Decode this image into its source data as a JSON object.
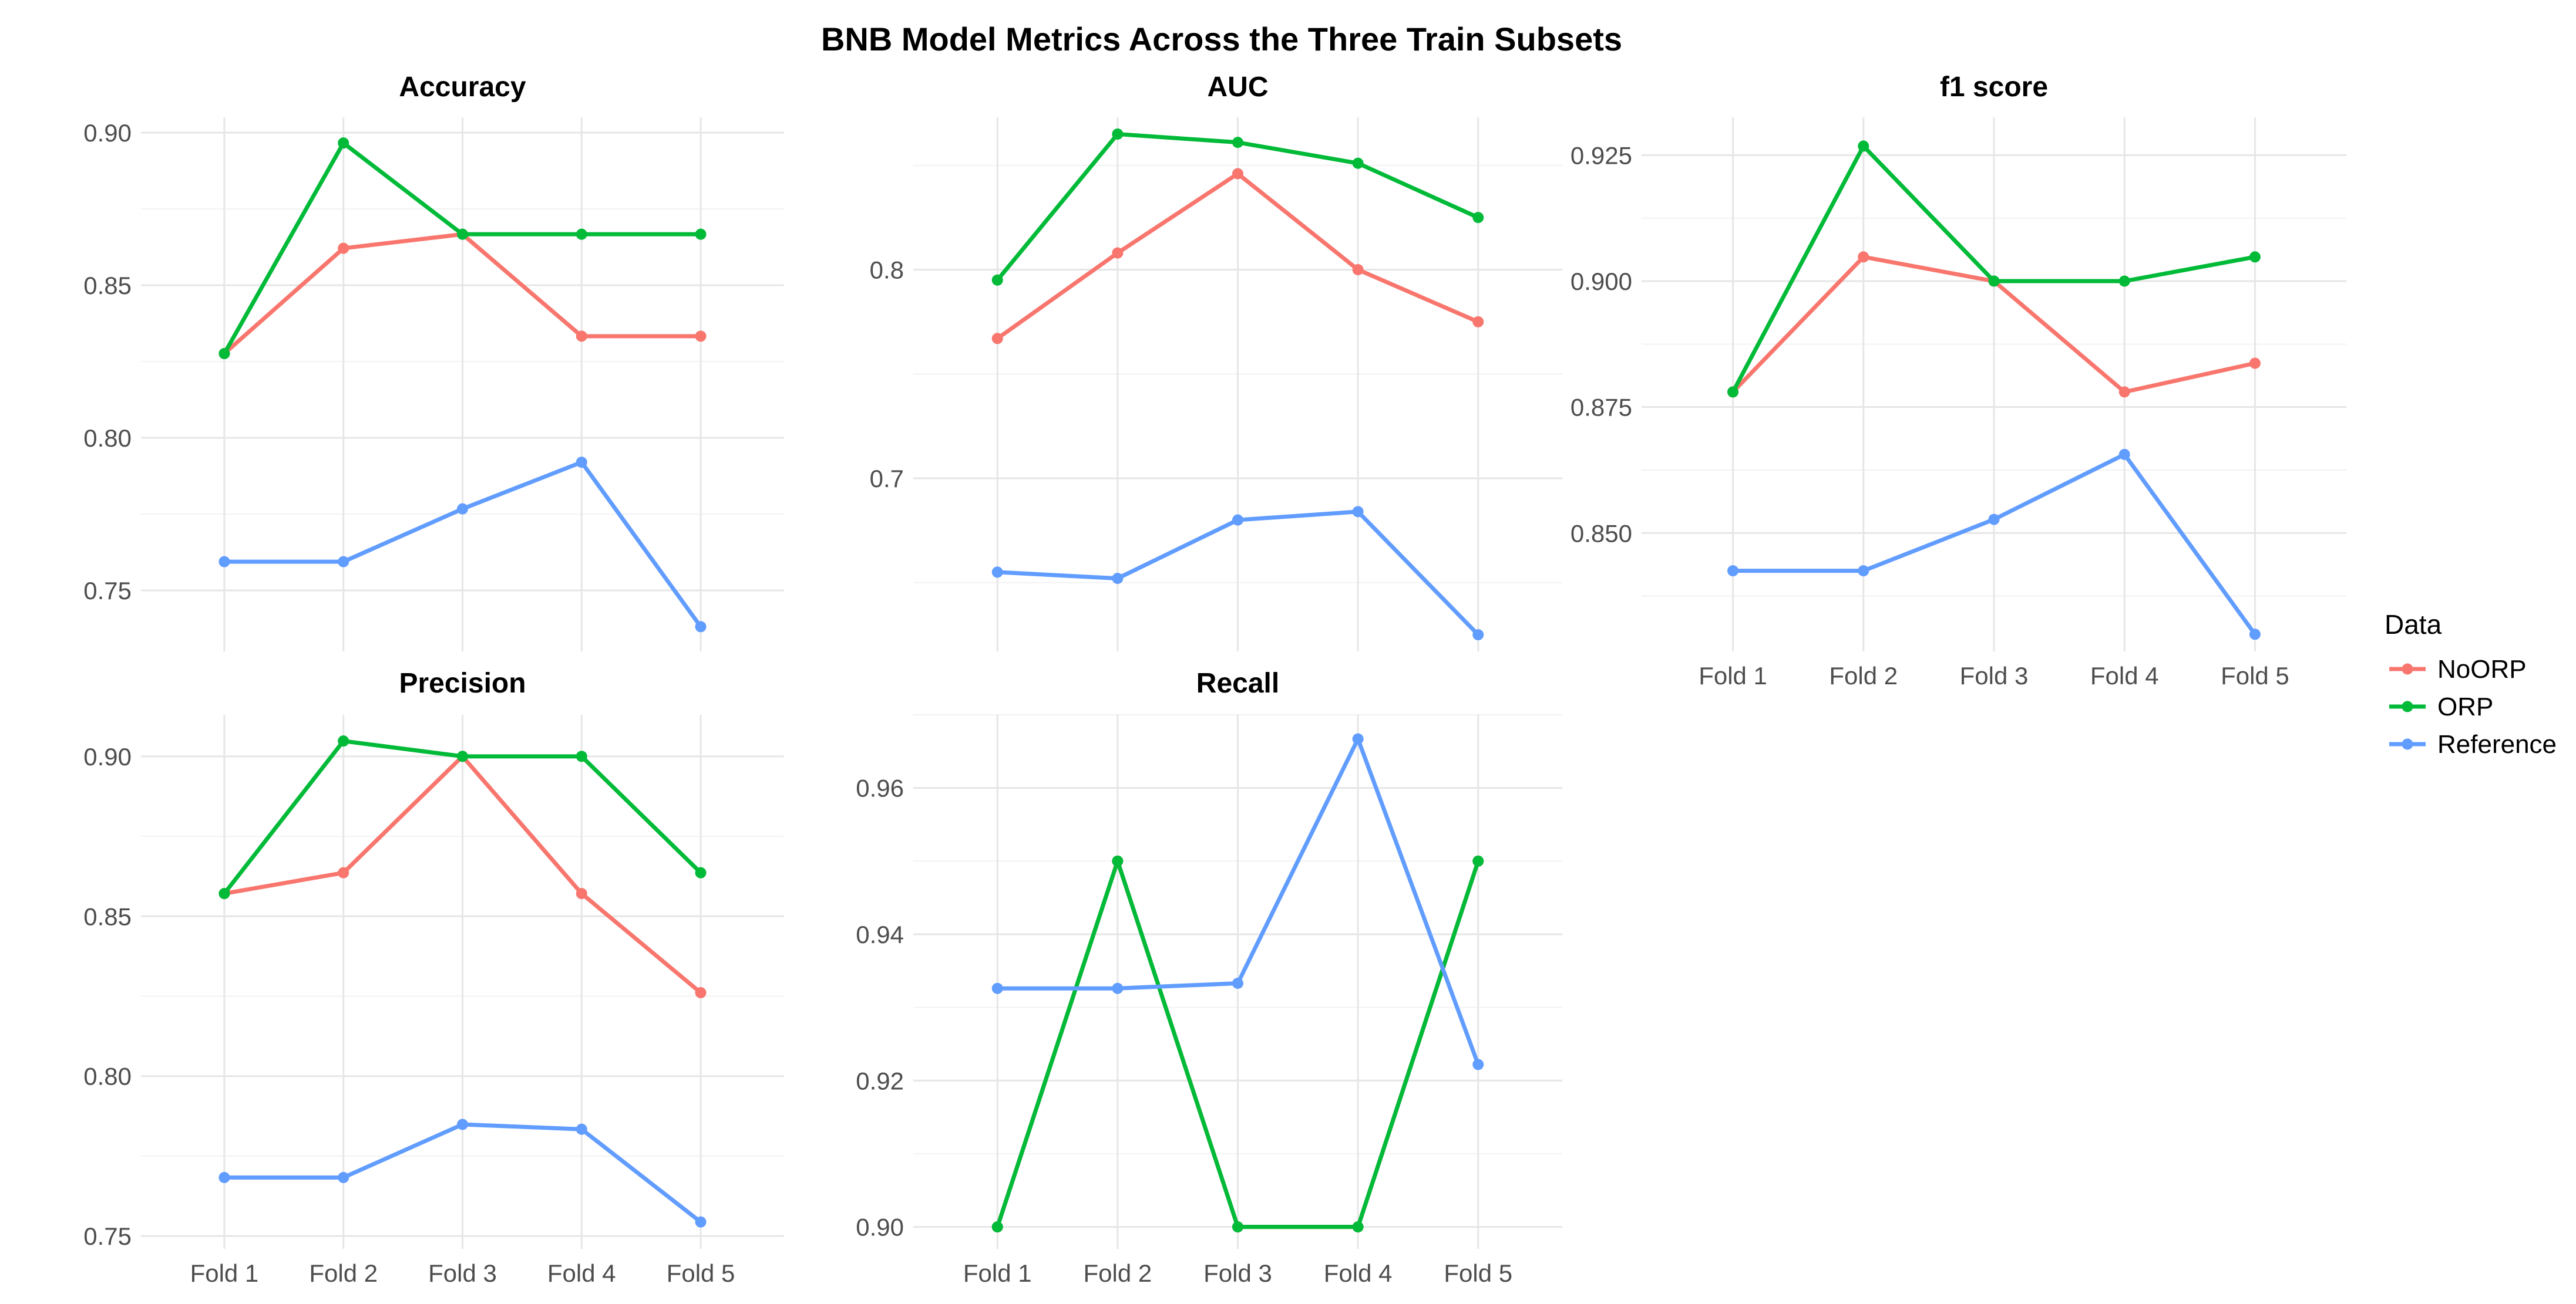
{
  "chart_data": {
    "type": "line",
    "title": "BNB Model Metrics Across the Three Train Subsets",
    "categories": [
      "Fold 1",
      "Fold 2",
      "Fold 3",
      "Fold 4",
      "Fold 5"
    ],
    "legend": {
      "title": "Data",
      "placement": "right",
      "entries": [
        {
          "name": "NoORP",
          "color": "#F8766D"
        },
        {
          "name": "ORP",
          "color": "#00BA38"
        },
        {
          "name": "Reference",
          "color": "#619CFF"
        }
      ]
    },
    "grid": true,
    "panels": [
      {
        "title": "Accuracy",
        "ylim": [
          0.73,
          0.905
        ],
        "yticks": [
          {
            "value": 0.75,
            "label": "0.75"
          },
          {
            "value": 0.8,
            "label": "0.80"
          },
          {
            "value": 0.85,
            "label": "0.85"
          },
          {
            "value": 0.9,
            "label": "0.90"
          }
        ],
        "series": [
          {
            "name": "NoORP",
            "values": [
              0.8276,
              0.8621,
              0.8667,
              0.8333,
              0.8333
            ]
          },
          {
            "name": "ORP",
            "values": [
              0.8276,
              0.8966,
              0.8667,
              0.8667,
              0.8667
            ]
          },
          {
            "name": "Reference",
            "values": [
              0.7594,
              0.7594,
              0.7767,
              0.792,
              0.7381
            ]
          }
        ]
      },
      {
        "title": "AUC",
        "ylim": [
          0.617,
          0.873
        ],
        "yticks": [
          {
            "value": 0.7,
            "label": "0.7"
          },
          {
            "value": 0.8,
            "label": "0.8"
          }
        ],
        "series": [
          {
            "name": "NoORP",
            "values": [
              0.767,
              0.808,
              0.846,
              0.8,
              0.775
            ]
          },
          {
            "name": "ORP",
            "values": [
              0.795,
              0.865,
              0.861,
              0.851,
              0.825
            ]
          },
          {
            "name": "Reference",
            "values": [
              0.655,
              0.652,
              0.68,
              0.684,
              0.625
            ]
          }
        ]
      },
      {
        "title": "f1 score",
        "ylim": [
          0.8265,
          0.9325
        ],
        "yticks": [
          {
            "value": 0.85,
            "label": "0.850"
          },
          {
            "value": 0.875,
            "label": "0.875"
          },
          {
            "value": 0.9,
            "label": "0.900"
          },
          {
            "value": 0.925,
            "label": "0.925"
          }
        ],
        "series": [
          {
            "name": "NoORP",
            "values": [
              0.878,
              0.9048,
              0.9,
              0.878,
              0.8837
            ]
          },
          {
            "name": "ORP",
            "values": [
              0.878,
              0.9268,
              0.9,
              0.9,
              0.9048
            ]
          },
          {
            "name": "Reference",
            "values": [
              0.8425,
              0.8425,
              0.8527,
              0.8656,
              0.8299
            ]
          }
        ]
      },
      {
        "title": "Precision",
        "ylim": [
          0.746,
          0.913
        ],
        "yticks": [
          {
            "value": 0.75,
            "label": "0.75"
          },
          {
            "value": 0.8,
            "label": "0.80"
          },
          {
            "value": 0.85,
            "label": "0.85"
          },
          {
            "value": 0.9,
            "label": "0.90"
          }
        ],
        "series": [
          {
            "name": "NoORP",
            "values": [
              0.8571,
              0.8636,
              0.9,
              0.8571,
              0.8261
            ]
          },
          {
            "name": "ORP",
            "values": [
              0.8571,
              0.9048,
              0.9,
              0.9,
              0.8636
            ]
          },
          {
            "name": "Reference",
            "values": [
              0.7683,
              0.7683,
              0.7849,
              0.7834,
              0.7544
            ]
          }
        ]
      },
      {
        "title": "Recall",
        "ylim": [
          0.897,
          0.97
        ],
        "yticks": [
          {
            "value": 0.9,
            "label": "0.90"
          },
          {
            "value": 0.92,
            "label": "0.92"
          },
          {
            "value": 0.94,
            "label": "0.94"
          },
          {
            "value": 0.96,
            "label": "0.96"
          }
        ],
        "series": [
          {
            "name": "NoORP",
            "values": [
              0.9,
              0.95,
              0.9,
              0.9,
              0.95
            ]
          },
          {
            "name": "ORP",
            "values": [
              0.9,
              0.95,
              0.9,
              0.9,
              0.95
            ]
          },
          {
            "name": "Reference",
            "values": [
              0.9326,
              0.9326,
              0.9333,
              0.9667,
              0.9222
            ]
          }
        ]
      }
    ]
  }
}
